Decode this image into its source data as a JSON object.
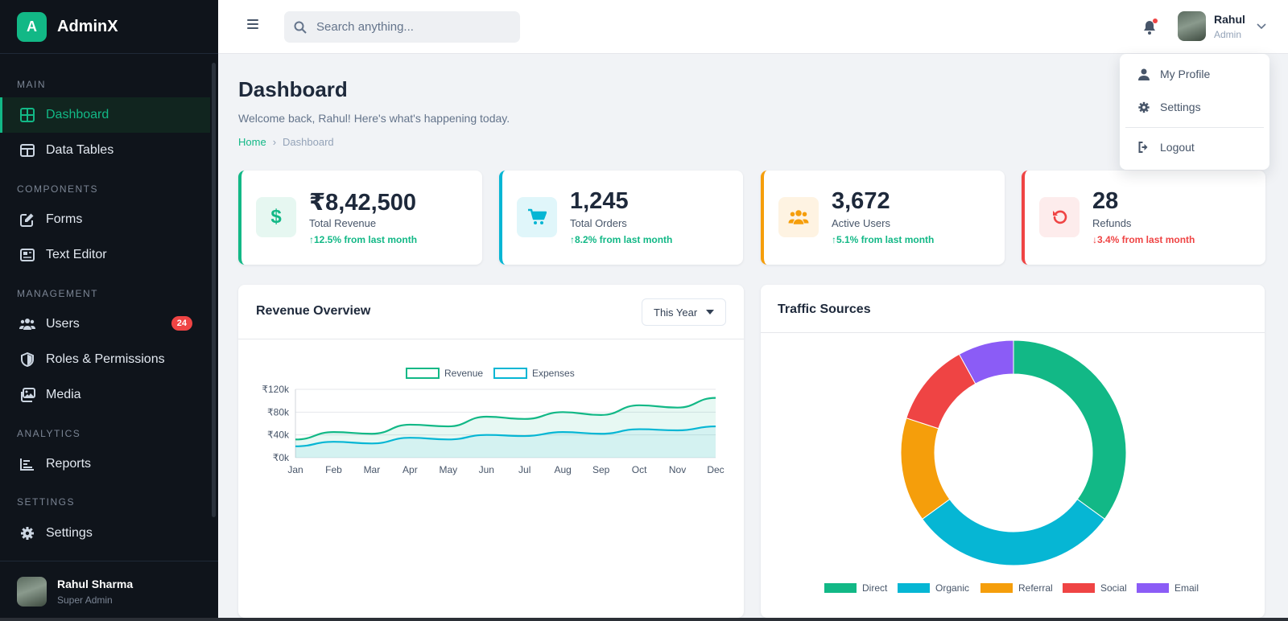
{
  "app": {
    "name": "AdminX",
    "logo_letter": "A",
    "accent": "#12b886"
  },
  "sidebar": {
    "sections": [
      {
        "label": "MAIN",
        "items": [
          {
            "label": "Dashboard",
            "icon": "grid-icon",
            "active": true
          },
          {
            "label": "Data Tables",
            "icon": "table-icon"
          }
        ]
      },
      {
        "label": "COMPONENTS",
        "items": [
          {
            "label": "Forms",
            "icon": "edit-icon"
          },
          {
            "label": "Text Editor",
            "icon": "newspaper-icon"
          }
        ]
      },
      {
        "label": "MANAGEMENT",
        "items": [
          {
            "label": "Users",
            "icon": "users-icon",
            "badge": "24"
          },
          {
            "label": "Roles & Permissions",
            "icon": "shield-icon"
          },
          {
            "label": "Media",
            "icon": "images-icon"
          }
        ]
      },
      {
        "label": "ANALYTICS",
        "items": [
          {
            "label": "Reports",
            "icon": "bar-chart-icon"
          }
        ]
      },
      {
        "label": "SETTINGS",
        "items": [
          {
            "label": "Settings",
            "icon": "gear-icon"
          }
        ]
      }
    ],
    "user": {
      "name": "Rahul Sharma",
      "role": "Super Admin"
    }
  },
  "topbar": {
    "search_placeholder": "Search anything...",
    "user": {
      "name": "Rahul",
      "role": "Admin"
    }
  },
  "dropdown": {
    "items": [
      "My Profile",
      "Settings",
      "Logout"
    ]
  },
  "page": {
    "title": "Dashboard",
    "subtitle": "Welcome back, Rahul! Here's what's happening today.",
    "breadcrumb": [
      "Home",
      "Dashboard"
    ]
  },
  "stats": [
    {
      "value": "₹8,42,500",
      "label": "Total Revenue",
      "change": "12.5% from last month",
      "trend": "up",
      "icon": "dollar-icon",
      "color": "#12b886",
      "bg": "#e6f7f1"
    },
    {
      "value": "1,245",
      "label": "Total Orders",
      "change": "8.2% from last month",
      "trend": "up",
      "icon": "cart-icon",
      "color": "#06b6d4",
      "bg": "#e0f6fa"
    },
    {
      "value": "3,672",
      "label": "Active Users",
      "change": "5.1% from last month",
      "trend": "up",
      "icon": "users-icon",
      "color": "#f59e0b",
      "bg": "#fef3e2"
    },
    {
      "value": "28",
      "label": "Refunds",
      "change": "3.4% from last month",
      "trend": "down",
      "icon": "undo-icon",
      "color": "#ef4444",
      "bg": "#fdecec"
    }
  ],
  "revenue_panel": {
    "title": "Revenue Overview",
    "filter": "This Year"
  },
  "traffic_panel": {
    "title": "Traffic Sources"
  },
  "chart_data": [
    {
      "type": "area",
      "title": "Revenue Overview",
      "categories": [
        "Jan",
        "Feb",
        "Mar",
        "Apr",
        "May",
        "Jun",
        "Jul",
        "Aug",
        "Sep",
        "Oct",
        "Nov",
        "Dec"
      ],
      "series": [
        {
          "name": "Revenue",
          "color": "#12b886",
          "values": [
            32000,
            45000,
            42000,
            58000,
            55000,
            72000,
            68000,
            80000,
            75000,
            92000,
            88000,
            105000
          ]
        },
        {
          "name": "Expenses",
          "color": "#06b6d4",
          "values": [
            20000,
            28000,
            25000,
            35000,
            32000,
            40000,
            38000,
            45000,
            42000,
            50000,
            48000,
            55000
          ]
        }
      ],
      "yticks": [
        "₹0k",
        "₹40k",
        "₹80k",
        "₹120k"
      ],
      "ylim": [
        0,
        120000
      ],
      "legend": "top",
      "grid": true
    },
    {
      "type": "pie",
      "donut": true,
      "title": "Traffic Sources",
      "categories": [
        "Direct",
        "Organic",
        "Referral",
        "Social",
        "Email"
      ],
      "values": [
        35,
        30,
        15,
        12,
        8
      ],
      "colors": [
        "#12b886",
        "#06b6d4",
        "#f59e0b",
        "#ef4444",
        "#8b5cf6"
      ],
      "legend": "bottom"
    }
  ]
}
